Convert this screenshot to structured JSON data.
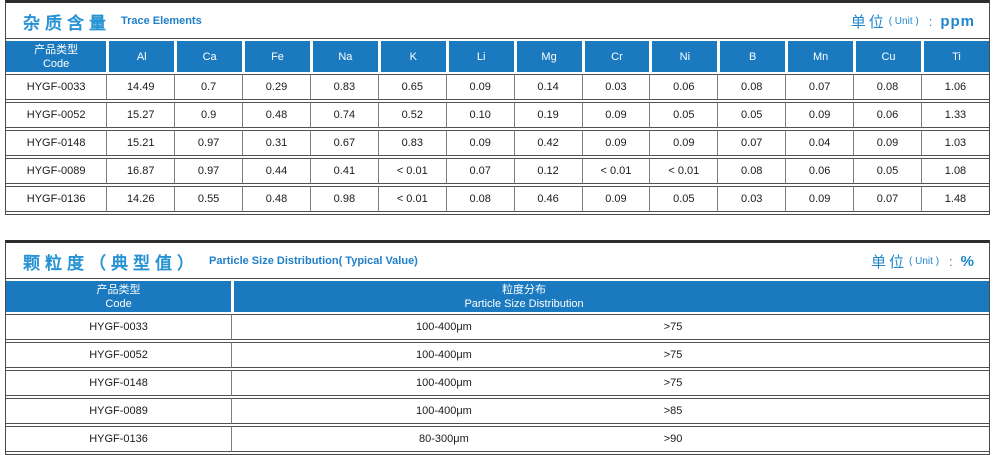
{
  "colors": {
    "header_bg": "#1b7abf",
    "title_blue": "#2793d4",
    "unit_blue": "#1f86cc",
    "border_dark": "#4a4a4a"
  },
  "trace": {
    "title_zh": "杂质含量",
    "title_en": "Trace Elements",
    "unit_zh": "单位",
    "unit_en": "( Unit )",
    "unit_colon": ":",
    "unit_value": "ppm",
    "code_header_zh": "产品类型",
    "code_header_en": "Code",
    "columns": [
      "Al",
      "Ca",
      "Fe",
      "Na",
      "K",
      "Li",
      "Mg",
      "Cr",
      "Ni",
      "B",
      "Mn",
      "Cu",
      "Ti"
    ],
    "rows": [
      {
        "code": "HYGF-0033",
        "values": [
          "14.49",
          "0.7",
          "0.29",
          "0.83",
          "0.65",
          "0.09",
          "0.14",
          "0.03",
          "0.06",
          "0.08",
          "0.07",
          "0.08",
          "1.06"
        ]
      },
      {
        "code": "HYGF-0052",
        "values": [
          "15.27",
          "0.9",
          "0.48",
          "0.74",
          "0.52",
          "0.10",
          "0.19",
          "0.09",
          "0.05",
          "0.05",
          "0.09",
          "0.06",
          "1.33"
        ]
      },
      {
        "code": "HYGF-0148",
        "values": [
          "15.21",
          "0.97",
          "0.31",
          "0.67",
          "0.83",
          "0.09",
          "0.42",
          "0.09",
          "0.09",
          "0.07",
          "0.04",
          "0.09",
          "1.03"
        ]
      },
      {
        "code": "HYGF-0089",
        "values": [
          "16.87",
          "0.97",
          "0.44",
          "0.41",
          "< 0.01",
          "0.07",
          "0.12",
          "< 0.01",
          "< 0.01",
          "0.08",
          "0.06",
          "0.05",
          "1.08"
        ]
      },
      {
        "code": "HYGF-0136",
        "values": [
          "14.26",
          "0.55",
          "0.48",
          "0.98",
          "< 0.01",
          "0.08",
          "0.46",
          "0.09",
          "0.05",
          "0.03",
          "0.09",
          "0.07",
          "1.48"
        ]
      }
    ]
  },
  "particle": {
    "title_zh": "颗粒度（典型值）",
    "title_en": "Particle Size Distribution( Typical Value)",
    "unit_zh": "单位",
    "unit_en": "( Unit )",
    "unit_colon": ":",
    "unit_value": "%",
    "code_header_zh": "产品类型",
    "code_header_en": "Code",
    "dist_header_zh": "粒度分布",
    "dist_header_en": "Particle Size Distribution",
    "rows": [
      {
        "code": "HYGF-0033",
        "range": "100-400μm",
        "value": ">75"
      },
      {
        "code": "HYGF-0052",
        "range": "100-400μm",
        "value": ">75"
      },
      {
        "code": "HYGF-0148",
        "range": "100-400μm",
        "value": ">75"
      },
      {
        "code": "HYGF-0089",
        "range": "100-400μm",
        "value": ">85"
      },
      {
        "code": "HYGF-0136",
        "range": "80-300μm",
        "value": ">90"
      }
    ]
  }
}
